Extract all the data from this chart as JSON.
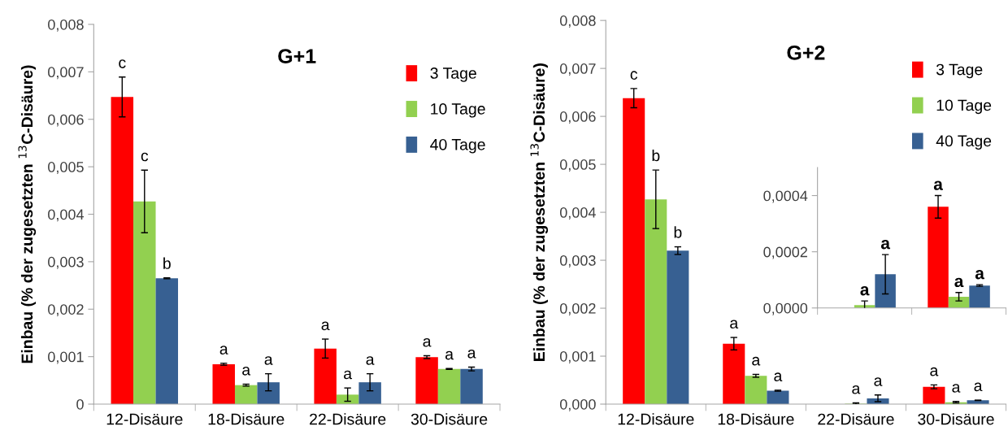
{
  "chart_data": [
    {
      "type": "bar",
      "title": "G+1",
      "ylabel": "Einbau (% der zugesetzten $^{13}$C-Disäure)",
      "categories": [
        "12-Disäure",
        "18-Disäure",
        "22-Disäure",
        "30-Disäure"
      ],
      "series": [
        {
          "name": "3 Tage",
          "color": "#ff0000",
          "values": [
            0.00647,
            0.00084,
            0.00117,
            0.00099
          ],
          "errors": [
            0.00042,
            2e-05,
            0.0002,
            3e-05
          ],
          "value_labels": [
            "c",
            "a",
            "a",
            "a"
          ]
        },
        {
          "name": "10 Tage",
          "color": "#92d050",
          "values": [
            0.00427,
            0.0004,
            0.0002,
            0.00074
          ],
          "errors": [
            0.00066,
            2e-05,
            0.00014,
            1e-05
          ],
          "value_labels": [
            "c",
            "a",
            "a",
            "a"
          ]
        },
        {
          "name": "40 Tage",
          "color": "#376092",
          "values": [
            0.00265,
            0.00046,
            0.00046,
            0.00074
          ],
          "errors": [
            1e-05,
            0.00018,
            0.00018,
            4e-05
          ],
          "value_labels": [
            "b",
            "a",
            "a",
            "a"
          ]
        }
      ],
      "ylim": [
        0,
        0.008
      ],
      "yticks": [
        0,
        {
          "value": 0.001,
          "label": "0,001"
        },
        {
          "value": 0.002,
          "label": "0,002"
        },
        {
          "value": 0.003,
          "label": "0,003"
        },
        {
          "value": 0.004,
          "label": "0,004"
        },
        {
          "value": 0.005,
          "label": "0,005"
        },
        {
          "value": 0.006,
          "label": "0,006"
        },
        {
          "value": 0.007,
          "label": "0,007"
        },
        {
          "value": 0.008,
          "label": "0,008"
        }
      ],
      "grid": false,
      "legend": "top right"
    },
    {
      "type": "bar",
      "title": "G+2",
      "ylabel": "Einbau (% der zugesetzten $^{13}$C-Disäure)",
      "categories": [
        "12-Disäure",
        "18-Disäure",
        "22-Disäure",
        "30-Disäure"
      ],
      "series": [
        {
          "name": "3 Tage",
          "color": "#ff0000",
          "values": [
            0.00638,
            0.00126,
            null,
            0.00036
          ],
          "errors": [
            0.0002,
            0.00013,
            null,
            4e-05
          ],
          "value_labels": [
            "c",
            "a",
            null,
            "a"
          ]
        },
        {
          "name": "10 Tage",
          "color": "#92d050",
          "values": [
            0.00427,
            0.00059,
            1e-05,
            4e-05
          ],
          "errors": [
            0.00061,
            3e-05,
            1.5e-05,
            1.5e-05
          ],
          "value_labels": [
            "b",
            "a",
            "a",
            "a"
          ]
        },
        {
          "name": "40 Tage",
          "color": "#376092",
          "values": [
            0.0032,
            0.00028,
            0.00012,
            8e-05
          ],
          "errors": [
            8e-05,
            1e-05,
            7e-05,
            3e-06
          ],
          "value_labels": [
            "b",
            "a",
            "a",
            "a"
          ]
        }
      ],
      "ylim": [
        0,
        0.008
      ],
      "yticks": [
        {
          "value": 0,
          "label": "0,000"
        },
        {
          "value": 0.001,
          "label": "0,001"
        },
        {
          "value": 0.002,
          "label": "0,002"
        },
        {
          "value": 0.003,
          "label": "0,003"
        },
        {
          "value": 0.004,
          "label": "0,004"
        },
        {
          "value": 0.005,
          "label": "0,005"
        },
        {
          "value": 0.006,
          "label": "0,006"
        },
        {
          "value": 0.007,
          "label": "0,007"
        },
        {
          "value": 0.008,
          "label": "0,008"
        }
      ],
      "grid": false,
      "legend": "top right"
    },
    {
      "type": "bar",
      "categories": [
        null,
        null
      ],
      "series": [
        {
          "color": "#ff0000",
          "values": [
            null,
            0.00036
          ],
          "errors": [
            null,
            4e-05
          ],
          "value_labels": [
            null,
            "a"
          ]
        },
        {
          "color": "#92d050",
          "values": [
            1e-05,
            4e-05
          ],
          "errors": [
            1.5e-05,
            1.5e-05
          ],
          "value_labels": [
            "a",
            "a"
          ]
        },
        {
          "color": "#376092",
          "values": [
            0.00012,
            8e-05
          ],
          "errors": [
            7e-05,
            3e-06
          ],
          "value_labels": [
            "a",
            "a"
          ]
        }
      ],
      "ylim": [
        0,
        0.0005
      ],
      "yticks": [
        {
          "value": 0,
          "label": "0,0000"
        },
        {
          "value": 0.0002,
          "label": "0,0002"
        },
        {
          "value": 0.0004,
          "label": "0,0004"
        }
      ],
      "grid": false
    }
  ]
}
